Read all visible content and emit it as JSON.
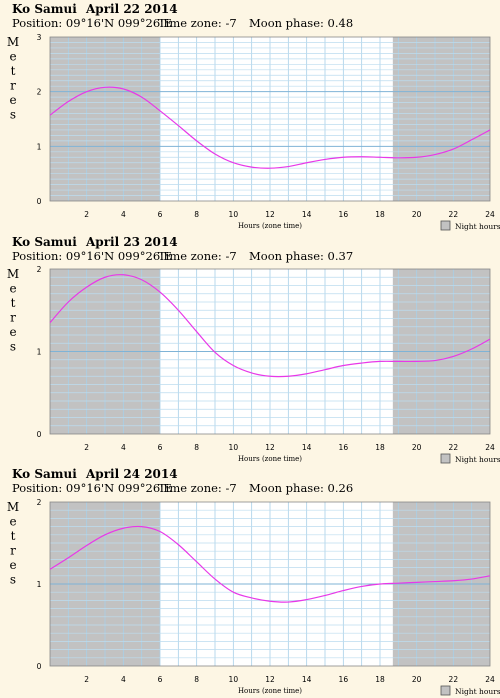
{
  "chart_data": [
    {
      "type": "line",
      "location": "Ko Samui",
      "date": "April 22 2014",
      "position": "Position: 09°16'N 099°26'E",
      "timezone": "Time zone: -7",
      "moon_phase": "Moon phase: 0.48",
      "ylabel": "Metres",
      "xlabel": "Hours (zone time)",
      "legend": "Night hours",
      "xlim": [
        0,
        24
      ],
      "ylim": [
        0,
        3
      ],
      "x_ticks": [
        "2",
        "4",
        "6",
        "8",
        "10",
        "12",
        "14",
        "16",
        "18",
        "20",
        "22",
        "24"
      ],
      "y_ticks": [
        "0",
        "1",
        "2",
        "3"
      ],
      "night_before": 6,
      "night_after": 18.7,
      "series": [
        {
          "x": [
            0,
            1,
            2,
            3,
            4,
            5,
            6,
            7,
            8,
            9,
            10,
            11,
            12,
            13,
            14,
            15,
            16,
            17,
            18,
            19,
            20,
            21,
            22,
            23,
            24
          ],
          "values": [
            1.57,
            1.82,
            2.0,
            2.08,
            2.05,
            1.9,
            1.65,
            1.38,
            1.1,
            0.86,
            0.7,
            0.62,
            0.6,
            0.63,
            0.7,
            0.76,
            0.8,
            0.81,
            0.8,
            0.79,
            0.8,
            0.85,
            0.95,
            1.12,
            1.3
          ]
        }
      ]
    },
    {
      "type": "line",
      "location": "Ko Samui",
      "date": "April 23 2014",
      "position": "Position: 09°16'N 099°26'E",
      "timezone": "Time zone: -7",
      "moon_phase": "Moon phase: 0.37",
      "ylabel": "Metres",
      "xlabel": "Hours (zone time)",
      "legend": "Night hours",
      "xlim": [
        0,
        24
      ],
      "ylim": [
        0,
        2
      ],
      "x_ticks": [
        "2",
        "4",
        "6",
        "8",
        "10",
        "12",
        "14",
        "16",
        "18",
        "20",
        "22",
        "24"
      ],
      "y_ticks": [
        "0",
        "1",
        "2"
      ],
      "night_before": 6,
      "night_after": 18.7,
      "series": [
        {
          "x": [
            0,
            1,
            2,
            3,
            4,
            5,
            6,
            7,
            8,
            9,
            10,
            11,
            12,
            13,
            14,
            15,
            16,
            17,
            18,
            19,
            20,
            21,
            22,
            23,
            24
          ],
          "values": [
            1.35,
            1.6,
            1.78,
            1.9,
            1.93,
            1.87,
            1.72,
            1.5,
            1.24,
            0.99,
            0.83,
            0.74,
            0.7,
            0.7,
            0.73,
            0.78,
            0.83,
            0.86,
            0.88,
            0.88,
            0.88,
            0.89,
            0.94,
            1.03,
            1.15
          ]
        }
      ]
    },
    {
      "type": "line",
      "location": "Ko Samui",
      "date": "April 24 2014",
      "position": "Position: 09°16'N 099°26'E",
      "timezone": "Time zone: -7",
      "moon_phase": "Moon phase: 0.26",
      "ylabel": "Metres",
      "xlabel": "Hours (zone time)",
      "legend": "Night hours",
      "xlim": [
        0,
        24
      ],
      "ylim": [
        0,
        2
      ],
      "x_ticks": [
        "2",
        "4",
        "6",
        "8",
        "10",
        "12",
        "14",
        "16",
        "18",
        "20",
        "22",
        "24"
      ],
      "y_ticks": [
        "0",
        "1",
        "2"
      ],
      "night_before": 6,
      "night_after": 18.7,
      "series": [
        {
          "x": [
            0,
            1,
            2,
            3,
            4,
            5,
            6,
            7,
            8,
            9,
            10,
            11,
            12,
            13,
            14,
            15,
            16,
            17,
            18,
            19,
            20,
            21,
            22,
            23,
            24
          ],
          "values": [
            1.18,
            1.32,
            1.47,
            1.6,
            1.68,
            1.7,
            1.64,
            1.48,
            1.27,
            1.06,
            0.9,
            0.83,
            0.79,
            0.78,
            0.81,
            0.86,
            0.92,
            0.97,
            1.0,
            1.01,
            1.02,
            1.03,
            1.04,
            1.06,
            1.1
          ]
        }
      ]
    }
  ]
}
